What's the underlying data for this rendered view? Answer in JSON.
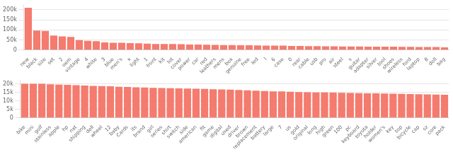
{
  "chart_data": [
    {
      "type": "bar",
      "categories": [
        "new",
        "black",
        "size",
        "set",
        "2",
        "oem",
        "vintage",
        "4",
        "white",
        "3",
        "blue",
        "men's",
        "x",
        "light",
        "1",
        "front",
        "kit",
        "lot",
        "cover",
        "power",
        "car",
        "red",
        "leathers",
        "mens",
        "box",
        "genuine",
        "free",
        "led",
        "l",
        "6",
        "case",
        "0",
        "rear",
        "cable",
        "usb",
        "pro",
        "air",
        "steel",
        "s",
        "guitar",
        "adapter",
        "silver",
        "tool",
        "shoes",
        "wireless",
        "ford",
        "laptop",
        "8",
        "doll",
        "bag"
      ],
      "values": [
        210000,
        97000,
        95000,
        72000,
        68000,
        65000,
        50000,
        46000,
        44000,
        38000,
        36000,
        36000,
        35000,
        34000,
        32000,
        30000,
        30000,
        30000,
        29000,
        28000,
        28000,
        27000,
        26000,
        25000,
        25000,
        24000,
        24000,
        23000,
        22000,
        22000,
        22000,
        21000,
        21000,
        20000,
        20000,
        19000,
        19000,
        18000,
        18000,
        18000,
        17000,
        17000,
        17000,
        17000,
        16000,
        16000,
        15000,
        15000,
        15000,
        14000
      ],
      "color": "#F47B6E",
      "ylim": [
        0,
        225000
      ],
      "yticks": [
        0,
        {
          "value": 50000,
          "label": "50k"
        },
        {
          "value": 100000,
          "label": "100k"
        },
        {
          "value": 150000,
          "label": "150k"
        },
        {
          "value": 200000,
          "label": "200k"
        }
      ],
      "grid": true
    },
    {
      "type": "bar",
      "categories": [
        "bike",
        "mini",
        "golf",
        "stainless",
        "apple",
        "hp",
        "nxt",
        "shipping",
        "dell",
        "wheel",
        "12",
        "baby",
        "Cards",
        "its",
        "brand",
        "girl",
        "series",
        "shirt",
        "switch",
        "side",
        "american",
        "fit",
        "game",
        "digital",
        "used",
        "driver",
        "brown",
        "replacement",
        "battery",
        "large",
        "7",
        "us",
        "gold",
        "original",
        "long",
        "high",
        "green",
        "100",
        "pc",
        "keyboard",
        "toyota",
        "holder",
        "women's",
        "key",
        "top",
        "bicycle",
        "cap",
        "sz",
        "core",
        "pack"
      ],
      "values": [
        20000,
        20000,
        20000,
        19700,
        19500,
        19400,
        19200,
        19000,
        18800,
        18700,
        18600,
        18300,
        18200,
        18000,
        17900,
        17700,
        17600,
        17500,
        17400,
        17200,
        17100,
        17000,
        16800,
        16700,
        16600,
        16400,
        16200,
        16000,
        15800,
        15600,
        15600,
        15400,
        15200,
        15100,
        15000,
        15000,
        14900,
        14800,
        14700,
        14600,
        14500,
        14400,
        14300,
        14200,
        14100,
        14000,
        13900,
        13800,
        13700,
        13600
      ],
      "color": "#F47B6E",
      "ylim": [
        0,
        22000
      ],
      "yticks": [
        0,
        {
          "value": 5000,
          "label": "5k"
        },
        {
          "value": 10000,
          "label": "10k"
        },
        {
          "value": 15000,
          "label": "15k"
        },
        {
          "value": 20000,
          "label": "20k"
        }
      ],
      "grid": true
    }
  ]
}
